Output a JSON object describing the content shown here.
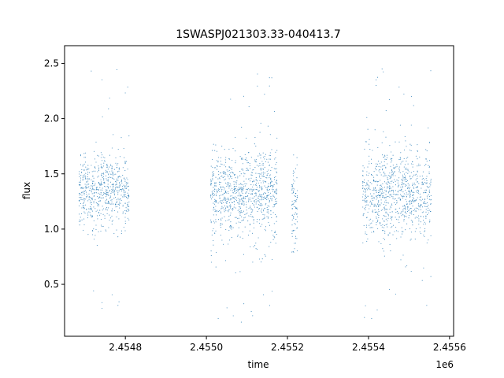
{
  "chart_data": {
    "type": "scatter",
    "title": "1SWASPJ021303.33-040413.7",
    "xlabel": "time",
    "ylabel": "flux",
    "x_offset_label": "1e6",
    "x_scale": 1000000,
    "xlim": [
      2454650,
      2455610
    ],
    "ylim": [
      0.03,
      2.66
    ],
    "x_ticks": [
      2454800,
      2455000,
      2455200,
      2455400,
      2455600
    ],
    "x_tick_labels": [
      "2.4548",
      "2.4550",
      "2.4552",
      "2.4554",
      "2.4556"
    ],
    "y_ticks": [
      0.5,
      1.0,
      1.5,
      2.0,
      2.5
    ],
    "y_tick_labels": [
      "0.5",
      "1.0",
      "1.5",
      "2.0",
      "2.5"
    ],
    "grid": false,
    "marker_color": "#1f77b4",
    "segments": [
      {
        "start": 2454685,
        "end": 2454810,
        "median": 1.33,
        "spread": 0.22,
        "min": 0.2,
        "max": 2.5
      },
      {
        "start": 2455010,
        "end": 2455175,
        "median": 1.32,
        "spread": 0.25,
        "min": 0.15,
        "max": 2.53
      },
      {
        "start": 2455210,
        "end": 2455225,
        "median": 1.25,
        "spread": 0.25,
        "min": 0.7,
        "max": 1.7
      },
      {
        "start": 2455385,
        "end": 2455555,
        "median": 1.32,
        "spread": 0.25,
        "min": 0.15,
        "max": 2.45
      }
    ]
  }
}
